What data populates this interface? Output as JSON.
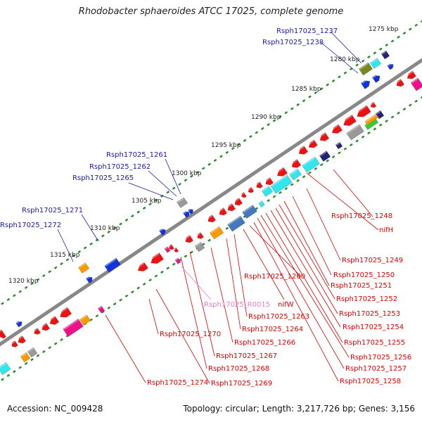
{
  "title": "Rhodobacter sphaeroides ATCC 17025, complete genome",
  "footer": {
    "accession": "Accession: NC_009428",
    "info": "Topology: circular; Length: 3,217,726 bp; Genes: 3,156"
  },
  "colors": {
    "backbone": "#888888",
    "tick": "#2a8a2a",
    "label_top": "#1a1aa8",
    "label_bottom": "#dd0000",
    "label_rna": "#e57fcb",
    "feature_red": "#ee1111",
    "feature_blue": "#1133dd",
    "feature_cyan": "#33e6ee",
    "feature_gray": "#999999",
    "feature_orange": "#ff9900",
    "feature_magenta": "#ee1188",
    "feature_green": "#33cc33",
    "feature_navy": "#222277",
    "feature_steel": "#4477bb",
    "feature_olive": "#778822"
  },
  "kbp_labels": [
    "1275 kbp",
    "1280 kbp",
    "1285 kbp",
    "1290 kbp",
    "1295 kbp",
    "1300 kbp",
    "1305 kbp",
    "1310 kbp",
    "1315 kbp",
    "1320 kbp"
  ],
  "top_labels": [
    "Rsph17025_1237",
    "Rsph17025_1238",
    "Rsph17025_1261",
    "Rsph17025_1262",
    "Rsph17025_1265",
    "Rsph17025_1271",
    "Rsph17025_1272"
  ],
  "bottom_labels": [
    "Rsph17025_1248",
    "nifH",
    "Rsph17025_1249",
    "Rsph17025_1250",
    "Rsph17025_1251",
    "Rsph17025_1252",
    "Rsph17025_1253",
    "Rsph17025_1254",
    "Rsph17025_1255",
    "Rsph17025_1256",
    "Rsph17025_1257",
    "Rsph17025_1258",
    "Rsph17025_1260",
    "nifW",
    "Rsph17025_1263",
    "Rsph17025_1264",
    "Rsph17025_1266",
    "Rsph17025_1267",
    "Rsph17025_1268",
    "Rsph17025_1269",
    "Rsph17025_1270",
    "Rsph17025_1274"
  ],
  "rna_labels": [
    "Rsph17025_R0015"
  ]
}
